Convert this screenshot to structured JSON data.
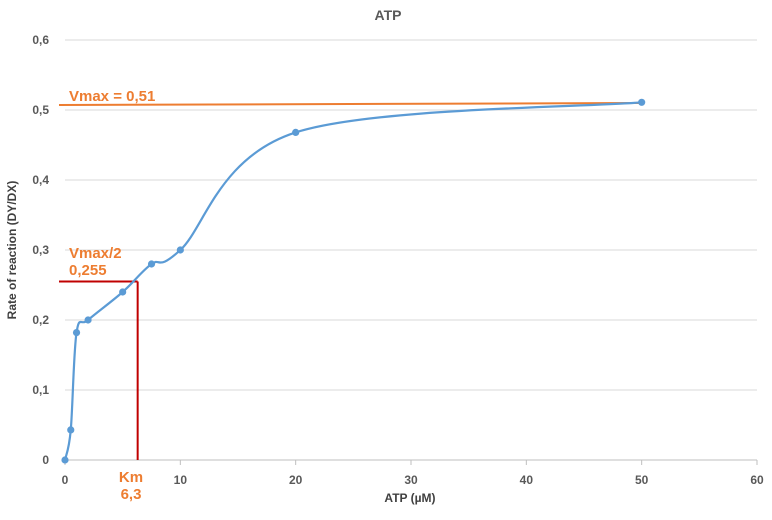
{
  "chart_data": {
    "type": "scatter",
    "title": "ATP",
    "xlabel": "ATP (µM)",
    "ylabel": "Rate of reaction (DY/DX)",
    "xlim": [
      0,
      60
    ],
    "ylim": [
      0,
      0.6
    ],
    "x_ticks": [
      "0",
      "10",
      "20",
      "30",
      "40",
      "50",
      "60"
    ],
    "y_ticks": [
      "0",
      "0,1",
      "0,2",
      "0,3",
      "0,4",
      "0,5",
      "0,6"
    ],
    "grid": "horizontal",
    "legend": "none",
    "series": [
      {
        "x": [
          0,
          0.5,
          1,
          2,
          5,
          7.5,
          10,
          20,
          50
        ],
        "y": [
          0,
          0.043,
          0.182,
          0.2,
          0.24,
          0.28,
          0.3,
          0.468,
          0.511
        ],
        "color": "#5B9BD5",
        "line": "smooth"
      }
    ],
    "annotations": {
      "vmax_label": "Vmax = 0,51",
      "vmax_value": 0.51,
      "vmax_half_label_1": "Vmax/2",
      "vmax_half_label_2": "0,255",
      "vmax_half_value": 0.255,
      "km_label_1": "Km",
      "km_label_2": "6,3",
      "km_value": 6.3,
      "orange": "#ED7D31",
      "red": "#C00000"
    }
  }
}
